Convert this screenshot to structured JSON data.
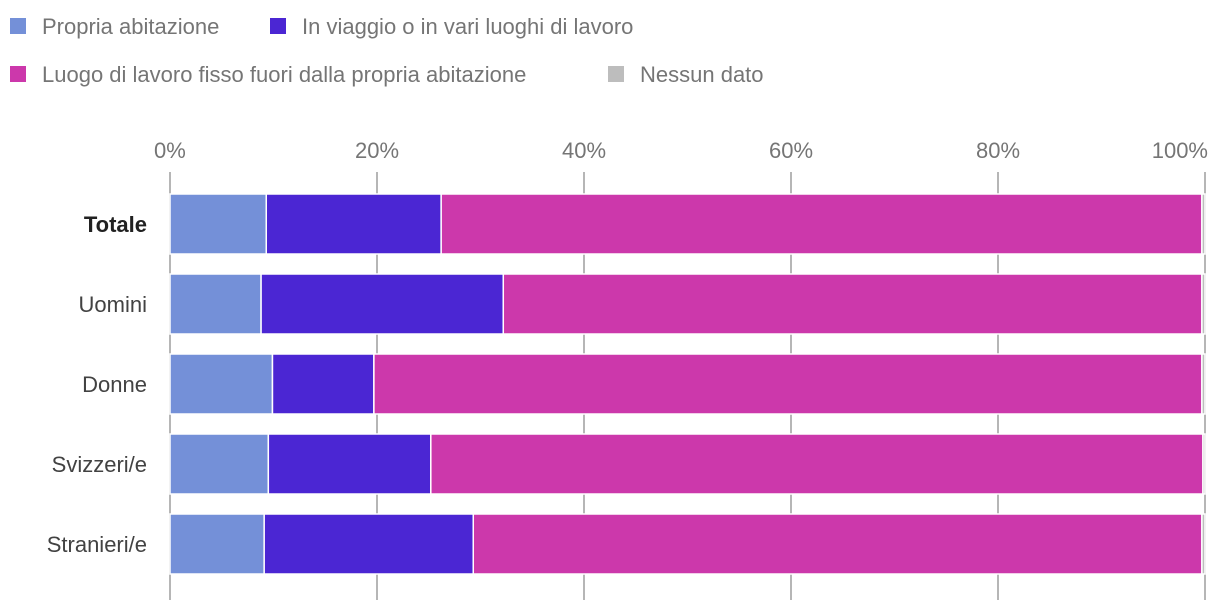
{
  "chart_data": {
    "type": "bar",
    "orientation": "horizontal",
    "stacked": true,
    "title": "",
    "xlabel": "",
    "ylabel": "",
    "xlim": [
      0,
      100
    ],
    "tick_labels": [
      "0%",
      "20%",
      "40%",
      "60%",
      "80%",
      "100%"
    ],
    "categories": [
      "Totale",
      "Uomini",
      "Donne",
      "Svizzeri/e",
      "Stranieri/e"
    ],
    "bold_category": "Totale",
    "series": [
      {
        "name": "Propria abitazione",
        "color": "#7490d8",
        "values": [
          9.3,
          8.8,
          9.9,
          9.5,
          9.1
        ]
      },
      {
        "name": "In viaggio o in vari luoghi di lavoro",
        "color": "#4b26d3",
        "values": [
          16.9,
          23.4,
          9.8,
          15.7,
          20.2
        ]
      },
      {
        "name": "Luogo di lavoro fisso fuori dalla propria abitazione",
        "color": "#cc38ab",
        "values": [
          73.5,
          67.5,
          80.0,
          74.6,
          70.4
        ]
      },
      {
        "name": "Nessun dato",
        "color": "#bdbdbd",
        "values": [
          0.3,
          0.3,
          0.3,
          0.2,
          0.3
        ]
      }
    ],
    "legend_position": "top-left",
    "grid": true
  }
}
